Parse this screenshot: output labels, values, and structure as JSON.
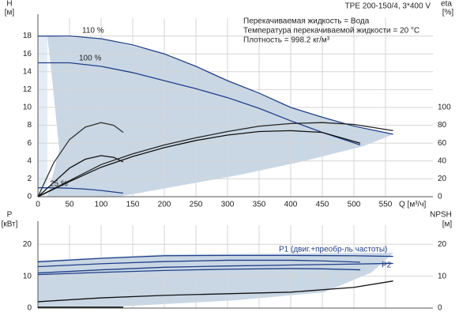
{
  "chart_data": [
    {
      "type": "line",
      "title": "TPE 200-150/4, 3*400 V",
      "notes": [
        "Перекачиваемая жидкость = Вода",
        "Температура перекачиваемой жидкости = 20 °C",
        "Плотность = 998.2 кг/м³"
      ],
      "y_label": "H",
      "y_unit": "[м]",
      "y2_label": "eta",
      "y2_unit": "[%]",
      "x_label": "Q [м³/ч]",
      "xlim": [
        0,
        625
      ],
      "xticks": [
        0,
        50,
        100,
        150,
        200,
        250,
        300,
        350,
        400,
        450,
        500,
        550
      ],
      "ylim": [
        0,
        20
      ],
      "yticks": [
        0,
        2,
        4,
        6,
        8,
        10,
        12,
        14,
        16,
        18
      ],
      "y2lim": [
        0,
        200
      ],
      "y2ticks": [
        0,
        20,
        40,
        60,
        80,
        100
      ],
      "grid": true,
      "annotations": [
        "110 %",
        "100 %",
        "25 %"
      ],
      "series": [
        {
          "color": "#1f3f8a",
          "x": [
            0,
            50,
            100,
            150,
            200,
            250,
            300,
            350,
            400,
            450,
            500,
            562
          ],
          "values": [
            18,
            18,
            17.7,
            17,
            16,
            14.6,
            13,
            11.6,
            10,
            8.9,
            7.9,
            7
          ]
        },
        {
          "color": "#1f3f8a",
          "x": [
            0,
            50,
            100,
            150,
            200,
            250,
            300,
            350,
            400,
            450,
            480,
            510
          ],
          "values": [
            15,
            15,
            14.6,
            13.9,
            13,
            12.1,
            11.1,
            9.9,
            8.5,
            7.2,
            6.5,
            5.8
          ]
        },
        {
          "color": "#1f3f8a",
          "x": [
            0,
            25,
            50,
            75,
            100,
            135
          ],
          "values": [
            1,
            1,
            0.95,
            0.85,
            0.7,
            0.4
          ]
        },
        {
          "color": "#333333",
          "axis": "y2",
          "x": [
            0,
            25,
            50,
            75,
            100,
            120,
            135
          ],
          "values": [
            0,
            38,
            64,
            78,
            83,
            80,
            72
          ]
        },
        {
          "color": "#111111",
          "axis": "y2",
          "x": [
            0,
            25,
            50,
            75,
            100,
            120,
            135
          ],
          "values": [
            0,
            16,
            32,
            42,
            46,
            44,
            39
          ]
        },
        {
          "color": "#222222",
          "axis": "y2",
          "x": [
            0,
            50,
            100,
            150,
            200,
            250,
            300,
            350,
            400,
            450,
            500,
            562
          ],
          "values": [
            0,
            18,
            36,
            48,
            58,
            66,
            73,
            79,
            82,
            83,
            81,
            74
          ]
        },
        {
          "color": "#111111",
          "axis": "y2",
          "x": [
            0,
            50,
            100,
            150,
            200,
            250,
            300,
            350,
            400,
            450,
            510
          ],
          "values": [
            0,
            17,
            33,
            45,
            55,
            63,
            69,
            73,
            74,
            72,
            60
          ]
        }
      ]
    },
    {
      "type": "line",
      "y_label": "P",
      "y_unit": "[кВт]",
      "y2_label": "NPSH",
      "y2_unit": "[м]",
      "xlim": [
        0,
        625
      ],
      "ylim": [
        0,
        26
      ],
      "yticks": [
        0,
        10,
        20
      ],
      "y2lim": [
        0,
        26
      ],
      "y2ticks": [
        0,
        10,
        20
      ],
      "grid": true,
      "series": [
        {
          "name": "P1 (двиг.+преобр-ль частоты)",
          "color": "#1f3f8a",
          "x": [
            0,
            100,
            200,
            300,
            400,
            500,
            562
          ],
          "values": [
            14.5,
            15.6,
            16.4,
            16.5,
            16.5,
            16.4,
            16.2
          ]
        },
        {
          "color": "#1f3f8a",
          "x": [
            0,
            100,
            200,
            300,
            400,
            450,
            510
          ],
          "values": [
            13,
            13.9,
            14.6,
            15,
            15,
            14.8,
            14.4
          ]
        },
        {
          "name": "P2",
          "color": "#1f3f8a",
          "x": [
            0,
            100,
            200,
            300,
            400,
            500,
            562
          ],
          "values": [
            11,
            12,
            12.8,
            13.2,
            13.5,
            13.8,
            14
          ]
        },
        {
          "color": "#1f3f8a",
          "x": [
            0,
            100,
            200,
            300,
            400,
            450,
            510
          ],
          "values": [
            10.5,
            11.2,
            11.8,
            12.2,
            12.4,
            12.3,
            12
          ]
        },
        {
          "color": "#111111",
          "axis": "y2",
          "x": [
            0,
            100,
            200,
            300,
            400,
            500,
            562
          ],
          "values": [
            2,
            3.2,
            4,
            4.5,
            5,
            6.5,
            8.5
          ]
        },
        {
          "color": "#111111",
          "x": [
            0,
            50,
            100,
            135
          ],
          "values": [
            0.3,
            0.3,
            0.3,
            0.3
          ]
        }
      ]
    }
  ]
}
